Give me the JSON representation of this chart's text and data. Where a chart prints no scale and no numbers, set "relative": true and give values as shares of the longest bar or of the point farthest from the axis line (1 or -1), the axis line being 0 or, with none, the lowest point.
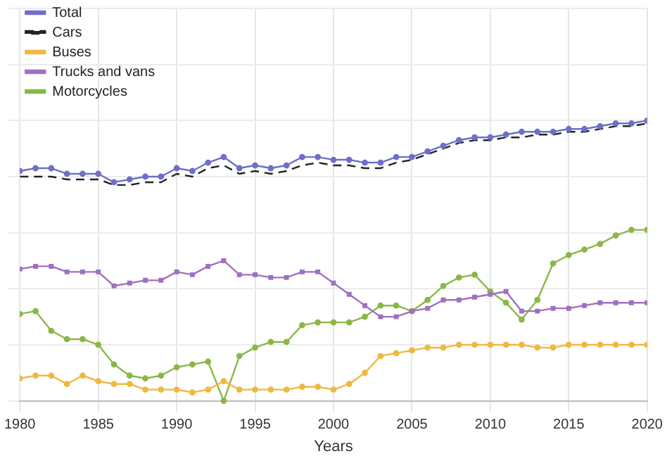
{
  "chart_data": {
    "type": "line",
    "xlabel": "Years",
    "relative": true,
    "legend": "top left",
    "grid": true,
    "xlim": [
      1980,
      2020
    ],
    "xticks": [
      1980,
      1985,
      1990,
      1995,
      2000,
      2005,
      2010,
      2015,
      2020
    ],
    "x": [
      1980,
      1981,
      1982,
      1983,
      1984,
      1985,
      1986,
      1987,
      1988,
      1989,
      1990,
      1991,
      1992,
      1993,
      1994,
      1995,
      1996,
      1997,
      1998,
      1999,
      2000,
      2001,
      2002,
      2003,
      2004,
      2005,
      2006,
      2007,
      2008,
      2009,
      2010,
      2011,
      2012,
      2013,
      2014,
      2015,
      2016,
      2017,
      2018,
      2019,
      2020
    ],
    "series": [
      {
        "name": "Total",
        "color": "#6f6fc9",
        "marker": "circle",
        "line_style": "solid",
        "values": [
          0.82,
          0.83,
          0.83,
          0.81,
          0.81,
          0.81,
          0.78,
          0.79,
          0.8,
          0.8,
          0.83,
          0.82,
          0.85,
          0.87,
          0.83,
          0.84,
          0.83,
          0.84,
          0.87,
          0.87,
          0.86,
          0.86,
          0.85,
          0.85,
          0.87,
          0.87,
          0.89,
          0.91,
          0.93,
          0.94,
          0.94,
          0.95,
          0.96,
          0.96,
          0.96,
          0.97,
          0.97,
          0.98,
          0.99,
          0.99,
          1
        ]
      },
      {
        "name": "Cars",
        "color": "#222222",
        "marker": "none",
        "line_style": "dashed",
        "values": [
          0.8,
          0.8,
          0.8,
          0.79,
          0.79,
          0.79,
          0.77,
          0.77,
          0.78,
          0.78,
          0.81,
          0.8,
          0.83,
          0.84,
          0.81,
          0.82,
          0.81,
          0.82,
          0.84,
          0.85,
          0.84,
          0.84,
          0.83,
          0.83,
          0.85,
          0.86,
          0.88,
          0.9,
          0.92,
          0.93,
          0.93,
          0.94,
          0.94,
          0.95,
          0.95,
          0.96,
          0.96,
          0.97,
          0.98,
          0.98,
          0.99
        ]
      },
      {
        "name": "Buses",
        "color": "#f0b840",
        "marker": "circle",
        "line_style": "solid",
        "values": [
          0.08,
          0.09,
          0.09,
          0.06,
          0.09,
          0.07,
          0.06,
          0.06,
          0.04,
          0.04,
          0.04,
          0.03,
          0.04,
          0.07,
          0.04,
          0.04,
          0.04,
          0.04,
          0.05,
          0.05,
          0.04,
          0.06,
          0.1,
          0.16,
          0.17,
          0.18,
          0.19,
          0.19,
          0.2,
          0.2,
          0.2,
          0.2,
          0.2,
          0.19,
          0.19,
          0.2,
          0.2,
          0.2,
          0.2,
          0.2,
          0.2
        ]
      },
      {
        "name": "Trucks and vans",
        "color": "#a070c0",
        "marker": "square",
        "line_style": "solid",
        "values": [
          0.47,
          0.48,
          0.48,
          0.46,
          0.46,
          0.46,
          0.41,
          0.42,
          0.43,
          0.43,
          0.46,
          0.45,
          0.48,
          0.5,
          0.45,
          0.45,
          0.44,
          0.44,
          0.46,
          0.46,
          0.42,
          0.38,
          0.34,
          0.3,
          0.3,
          0.32,
          0.33,
          0.36,
          0.36,
          0.37,
          0.38,
          0.39,
          0.32,
          0.32,
          0.33,
          0.33,
          0.34,
          0.35,
          0.35,
          0.35,
          0.35
        ]
      },
      {
        "name": "Motorcycles",
        "color": "#8ab848",
        "marker": "circle",
        "line_style": "solid",
        "values": [
          0.31,
          0.32,
          0.25,
          0.22,
          0.22,
          0.2,
          0.13,
          0.09,
          0.08,
          0.09,
          0.12,
          0.13,
          0.14,
          0,
          0.16,
          0.19,
          0.21,
          0.21,
          0.27,
          0.28,
          0.28,
          0.28,
          0.3,
          0.34,
          0.34,
          0.32,
          0.36,
          0.41,
          0.44,
          0.45,
          0.39,
          0.35,
          0.29,
          0.36,
          0.49,
          0.52,
          0.54,
          0.56,
          0.59,
          0.61,
          0.61
        ]
      }
    ]
  }
}
